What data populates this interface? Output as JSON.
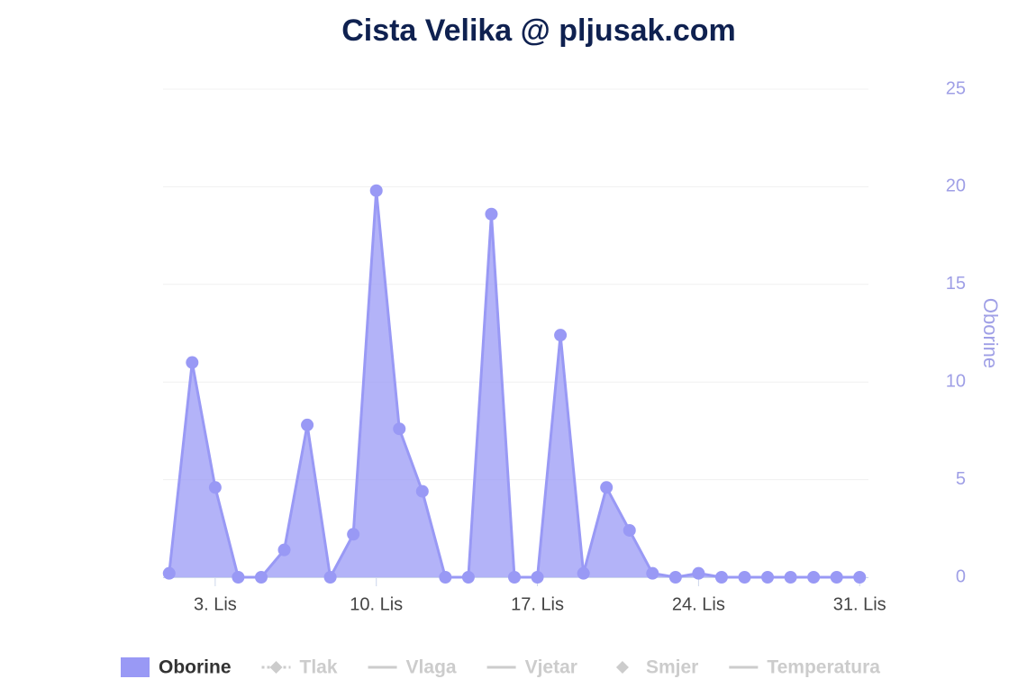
{
  "chart_data": {
    "type": "area",
    "title": "Cista Velika @ pljusak.com",
    "categories": [
      null,
      null,
      "3. Lis",
      null,
      null,
      null,
      null,
      null,
      null,
      "10. Lis",
      null,
      null,
      null,
      null,
      null,
      null,
      "17. Lis",
      null,
      null,
      null,
      null,
      null,
      null,
      "24. Lis",
      null,
      null,
      null,
      null,
      null,
      null,
      "31. Lis"
    ],
    "series": [
      {
        "name": "Oborine",
        "color": "#9999f5",
        "values": [
          0.2,
          11.0,
          4.6,
          0,
          0,
          1.4,
          7.8,
          0,
          2.2,
          19.8,
          7.6,
          4.4,
          0,
          0,
          18.6,
          0,
          0,
          12.4,
          0.2,
          4.6,
          2.4,
          0.2,
          0,
          0.2,
          0,
          0,
          0,
          0,
          0,
          0,
          0
        ]
      }
    ],
    "y_axis_title": "Oborine",
    "ylim": [
      0,
      25
    ],
    "yticks": [
      0,
      5,
      10,
      15,
      20,
      25
    ],
    "grid": true,
    "legend_position": "bottom",
    "legend_hidden_items": [
      {
        "name": "Tlak",
        "symbol": "dash-diamond"
      },
      {
        "name": "Vlaga",
        "symbol": "line"
      },
      {
        "name": "Vjetar",
        "symbol": "line"
      },
      {
        "name": "Smjer",
        "symbol": "diamond"
      },
      {
        "name": "Temperatura",
        "symbol": "line"
      }
    ]
  }
}
